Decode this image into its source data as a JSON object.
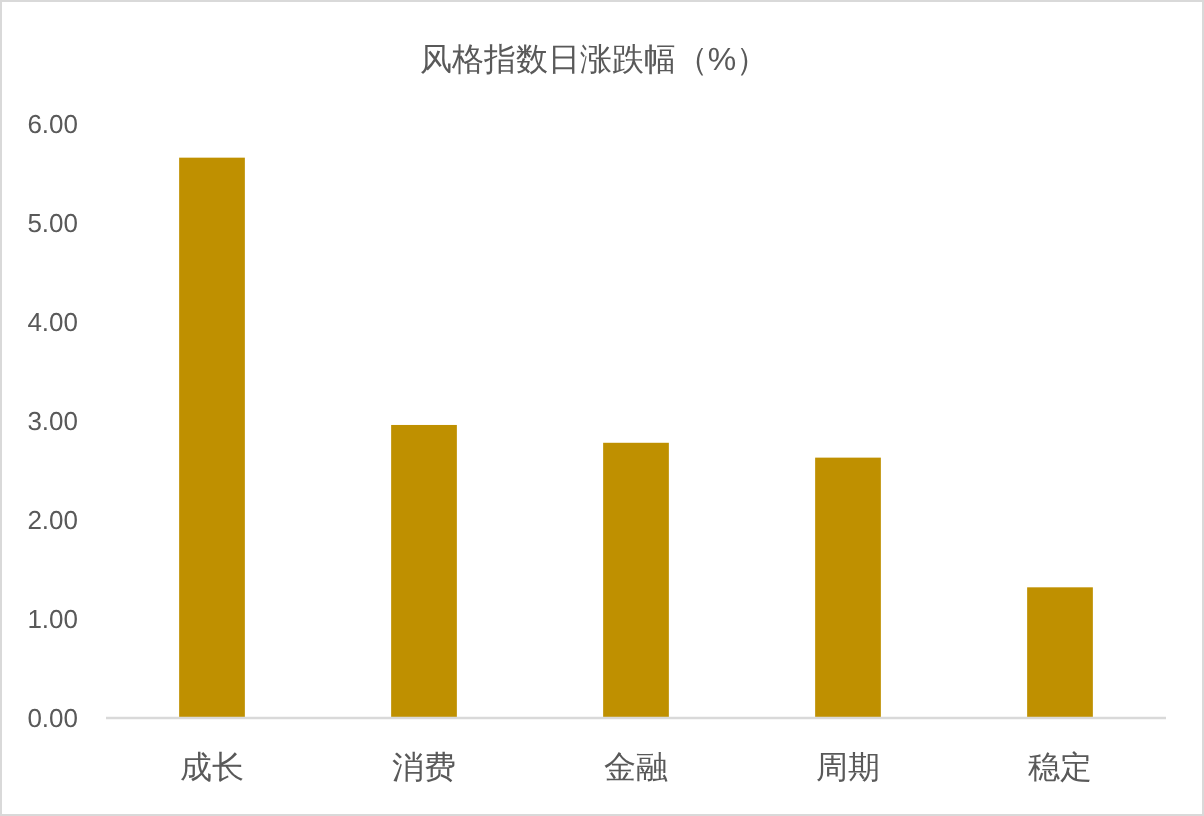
{
  "chart_data": {
    "type": "bar",
    "title": "风格指数日涨跌幅（%）",
    "categories": [
      "成长",
      "消费",
      "金融",
      "周期",
      "稳定"
    ],
    "values": [
      5.66,
      2.96,
      2.78,
      2.63,
      1.32
    ],
    "color": "#bf9000",
    "ylim": [
      0,
      6
    ],
    "yticks": [
      {
        "value": 0,
        "label": "0.00"
      },
      {
        "value": 1,
        "label": "1.00"
      },
      {
        "value": 2,
        "label": "2.00"
      },
      {
        "value": 3,
        "label": "3.00"
      },
      {
        "value": 4,
        "label": "4.00"
      },
      {
        "value": 5,
        "label": "5.00"
      },
      {
        "value": 6,
        "label": "6.00"
      }
    ]
  }
}
